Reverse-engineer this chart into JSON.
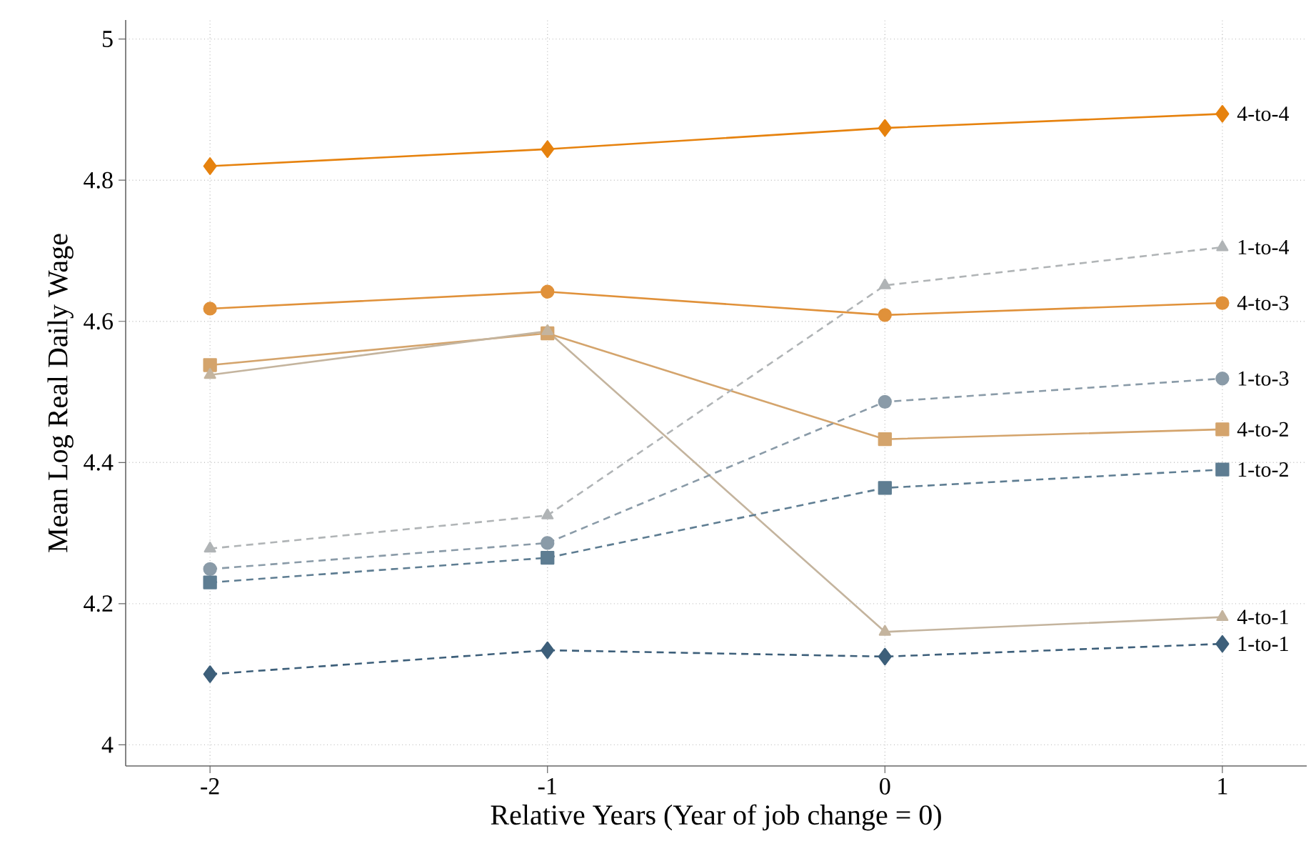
{
  "chart_data": {
    "type": "line",
    "xlabel": "Relative Years (Year of job change = 0)",
    "ylabel": "Mean Log Real Daily Wage",
    "x": [
      -2,
      -1,
      0,
      1
    ],
    "xlim": [
      -2.25,
      1.25
    ],
    "ylim": [
      3.97,
      5.027
    ],
    "xticks": [
      -2,
      -1,
      0,
      1
    ],
    "yticks": [
      4,
      4.2,
      4.4,
      4.6,
      4.8,
      5
    ],
    "grid": true,
    "legend": false,
    "series": [
      {
        "name": "4-to-4",
        "color": "#e6820e",
        "marker": "diamond",
        "line_style": "solid",
        "values": [
          4.82,
          4.844,
          4.874,
          4.894
        ]
      },
      {
        "name": "4-to-3",
        "color": "#e0913a",
        "marker": "circle",
        "line_style": "solid",
        "values": [
          4.618,
          4.642,
          4.609,
          4.626
        ]
      },
      {
        "name": "4-to-2",
        "color": "#d4a46c",
        "marker": "square",
        "line_style": "solid",
        "values": [
          4.538,
          4.583,
          4.433,
          4.447
        ]
      },
      {
        "name": "4-to-1",
        "color": "#c4b49e",
        "marker": "triangle",
        "line_style": "solid",
        "values": [
          4.524,
          4.586,
          4.16,
          4.181
        ]
      },
      {
        "name": "1-to-4",
        "color": "#b0b4b6",
        "marker": "triangle",
        "line_style": "dashed",
        "values": [
          4.278,
          4.325,
          4.651,
          4.705
        ]
      },
      {
        "name": "1-to-3",
        "color": "#8a9ba8",
        "marker": "circle",
        "line_style": "dashed",
        "values": [
          4.249,
          4.286,
          4.486,
          4.519
        ]
      },
      {
        "name": "1-to-2",
        "color": "#5e7d92",
        "marker": "square",
        "line_style": "dashed",
        "values": [
          4.23,
          4.265,
          4.364,
          4.39
        ]
      },
      {
        "name": "1-to-1",
        "color": "#3d5f7a",
        "marker": "diamond",
        "line_style": "dashed",
        "values": [
          4.1,
          4.134,
          4.125,
          4.143
        ]
      }
    ]
  }
}
